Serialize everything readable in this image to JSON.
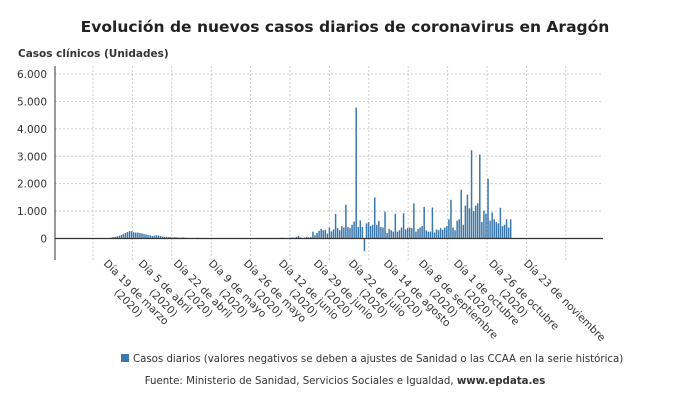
{
  "chart_data": {
    "type": "bar",
    "title": "Evolución de nuevos casos diarios de coronavirus en Aragón",
    "ylabel": "Casos clínicos (Unidades)",
    "xlabel": "",
    "ylim": [
      -800,
      6000
    ],
    "yticks": [
      0,
      1000,
      2000,
      3000,
      4000,
      5000,
      6000
    ],
    "ytick_labels": [
      "0",
      "1.000",
      "2.000",
      "3.000",
      "4.000",
      "5.000",
      "6.000"
    ],
    "grid": true,
    "x_tick_every_days": 17,
    "x_tick_labels": [
      {
        "line1": "Día 19 de marzo",
        "line2": "(2020)"
      },
      {
        "line1": "Día 5 de abril",
        "line2": "(2020)"
      },
      {
        "line1": "Día 22 de abril",
        "line2": "(2020)"
      },
      {
        "line1": "Día 9 de mayo",
        "line2": "(2020)"
      },
      {
        "line1": "Día 26 de mayo",
        "line2": "(2020)"
      },
      {
        "line1": "Día 12 de junio",
        "line2": "(2020)"
      },
      {
        "line1": "Día 29 de junio",
        "line2": "(2020)"
      },
      {
        "line1": "Día 22 de julio",
        "line2": "(2020)"
      },
      {
        "line1": "Día 14 de agosto",
        "line2": "(2020)"
      },
      {
        "line1": "Día 8 de septiembre",
        "line2": "(2020)"
      },
      {
        "line1": "Día 1 de octubre",
        "line2": "(2020)"
      },
      {
        "line1": "Día 26 de octubre",
        "line2": "(2020)"
      },
      {
        "line1": "Día 23 de noviembre",
        "line2": ""
      }
    ],
    "series": [
      {
        "name": "Casos diarios (valores negativos se deben a ajustes de Sanidad o las CCAA en la serie histórica)",
        "color": "#3b78ad",
        "values": [
          0,
          0,
          0,
          0,
          0,
          30,
          50,
          60,
          80,
          100,
          130,
          170,
          200,
          240,
          270,
          260,
          230,
          210,
          220,
          200,
          190,
          170,
          150,
          130,
          110,
          90,
          100,
          120,
          110,
          90,
          70,
          60,
          60,
          50,
          50,
          40,
          50,
          40,
          30,
          30,
          40,
          30,
          20,
          20,
          10,
          20,
          10,
          30,
          10,
          10,
          20,
          10,
          5,
          10,
          10,
          20,
          10,
          10,
          5,
          10,
          10,
          10,
          10,
          5,
          10,
          5,
          10,
          10,
          5,
          10,
          10,
          20,
          10,
          10,
          5,
          10,
          20,
          10,
          10,
          5,
          10,
          10,
          10,
          20,
          10,
          20,
          10,
          20,
          30,
          20,
          10,
          20,
          30,
          40,
          30,
          60,
          100,
          40,
          20,
          30,
          60,
          40,
          50,
          250,
          120,
          200,
          280,
          350,
          300,
          320,
          180,
          400,
          260,
          330,
          900,
          380,
          300,
          450,
          400,
          1230,
          420,
          380,
          500,
          620,
          4770,
          420,
          660,
          420,
          -460,
          550,
          600,
          450,
          500,
          1500,
          500,
          640,
          420,
          400,
          980,
          200,
          350,
          300,
          250,
          900,
          250,
          300,
          400,
          920,
          330,
          380,
          400,
          380,
          1280,
          250,
          350,
          400,
          450,
          1150,
          300,
          250,
          250,
          1130,
          220,
          330,
          300,
          380,
          320,
          400,
          450,
          700,
          1410,
          400,
          300,
          650,
          700,
          1780,
          500,
          1200,
          1600,
          1100,
          3220,
          1000,
          1200,
          1280,
          3060,
          600,
          1020,
          900,
          2180,
          650,
          950,
          700,
          600,
          550,
          1120,
          450,
          500,
          700,
          400,
          700
        ]
      }
    ],
    "legend_position": "bottom",
    "source": "Fuente: Ministerio de Sanidad, Servicios Sociales e Igualdad, ",
    "source_site": "www.epdata.es"
  }
}
